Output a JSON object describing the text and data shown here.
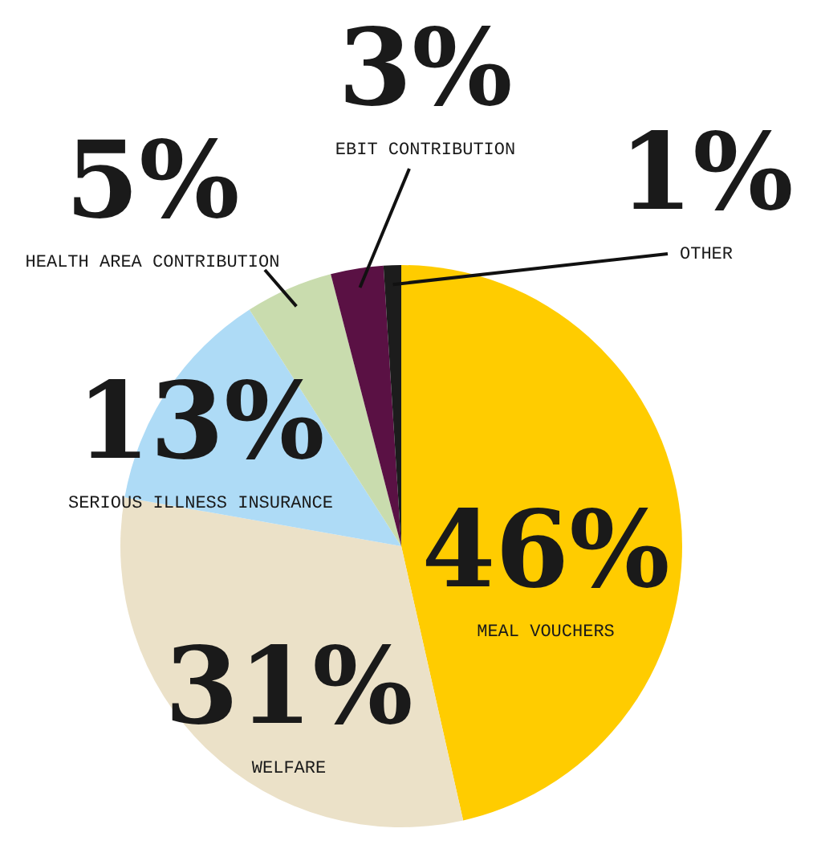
{
  "chart_data": {
    "type": "pie",
    "categories": [
      "MEAL VOUCHERS",
      "WELFARE",
      "SERIOUS ILLNESS INSURANCE",
      "HEALTH AREA CONTRIBUTION",
      "EBIT CONTRIBUTION",
      "OTHER"
    ],
    "values": [
      46,
      31,
      13,
      5,
      3,
      1
    ],
    "value_labels": [
      "46%",
      "31%",
      "13%",
      "5%",
      "3%",
      "1%"
    ],
    "colors": [
      "#ffcc00",
      "#ebe1c8",
      "#aedbf6",
      "#c9dcae",
      "#5a1144",
      "#1c1c1c"
    ]
  }
}
